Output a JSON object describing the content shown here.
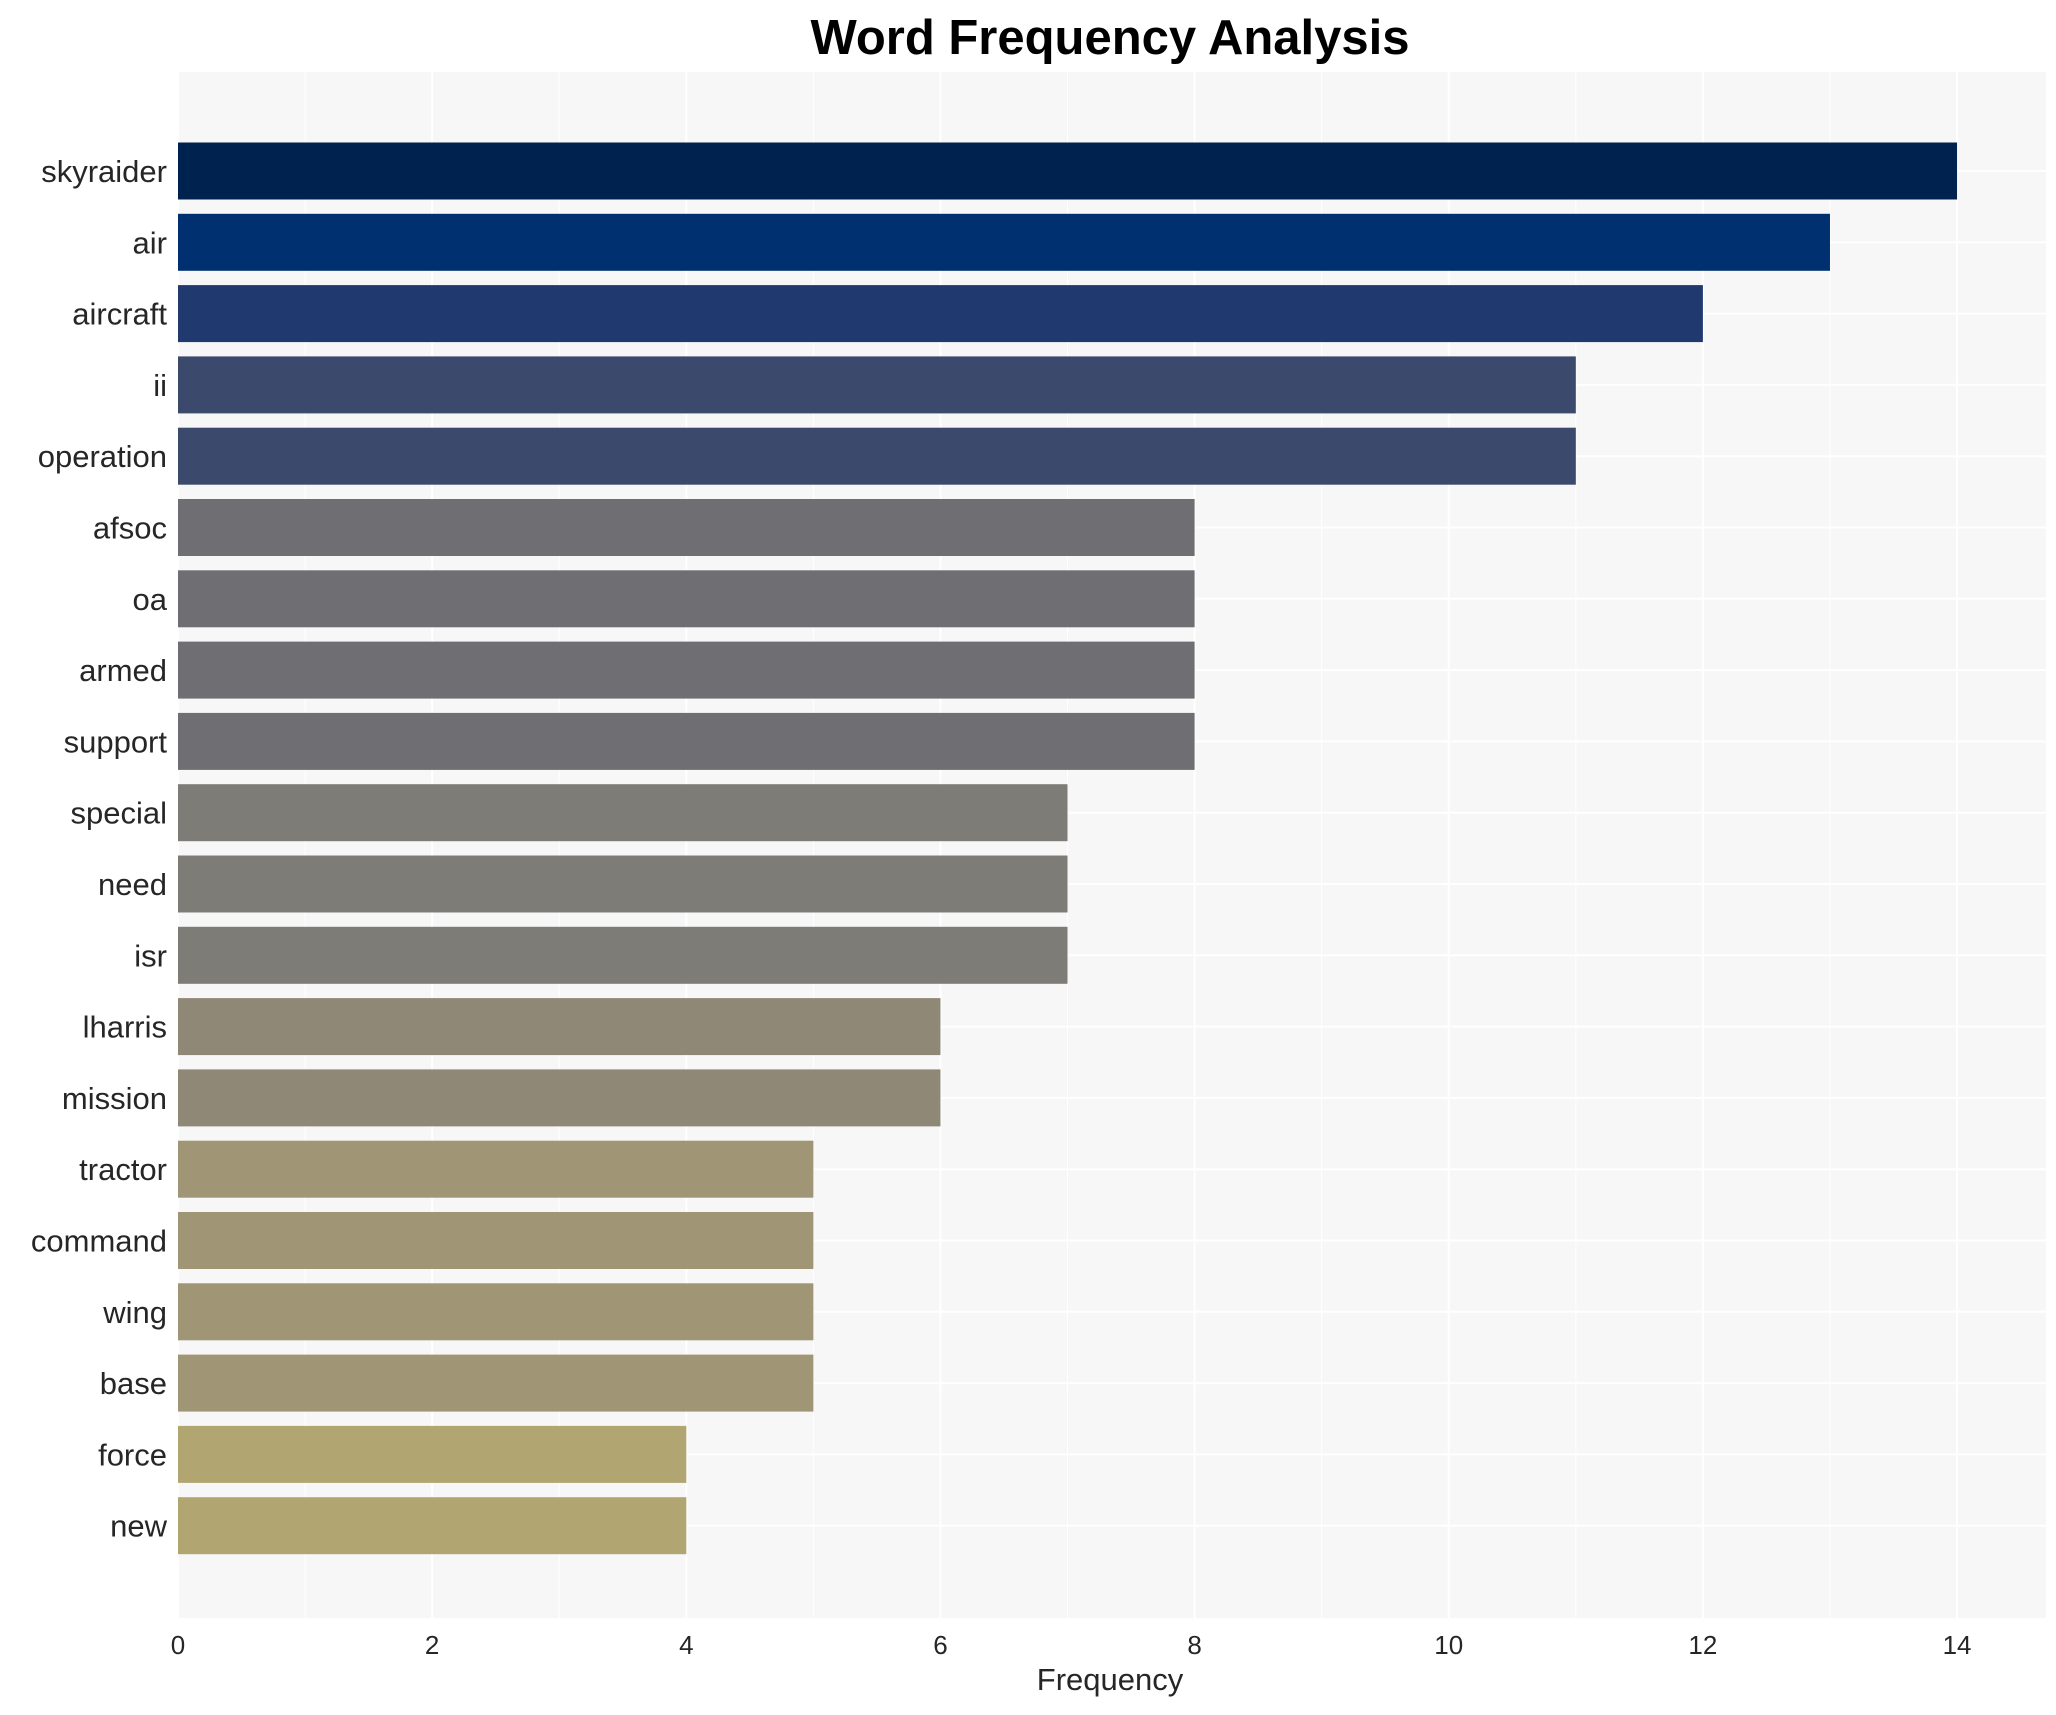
{
  "chart_data": {
    "type": "bar",
    "orientation": "horizontal",
    "title": "Word Frequency Analysis",
    "xlabel": "Frequency",
    "ylabel": "",
    "xlim": [
      0,
      14.7
    ],
    "xticks": [
      0,
      2,
      4,
      6,
      8,
      10,
      12,
      14
    ],
    "grid": true,
    "categories": [
      "skyraider",
      "air",
      "aircraft",
      "ii",
      "operation",
      "afsoc",
      "oa",
      "armed",
      "support",
      "special",
      "need",
      "isr",
      "lharris",
      "mission",
      "tractor",
      "command",
      "wing",
      "base",
      "force",
      "new"
    ],
    "values": [
      14,
      13,
      12,
      11,
      11,
      8,
      8,
      8,
      8,
      7,
      7,
      7,
      6,
      6,
      5,
      5,
      5,
      5,
      4,
      4
    ],
    "colors": [
      "#00224e",
      "#00306f",
      "#203a6f",
      "#3b496c",
      "#3b496c",
      "#6f6f73",
      "#6f6f73",
      "#6f6f73",
      "#6f6f73",
      "#7d7c77",
      "#7d7c77",
      "#7d7c77",
      "#8f8877",
      "#8f8877",
      "#a09676",
      "#a09676",
      "#a09676",
      "#a09676",
      "#b1a671",
      "#b1a671"
    ],
    "plot_background": "#f7f7f7",
    "grid_color": "#ffffff"
  }
}
